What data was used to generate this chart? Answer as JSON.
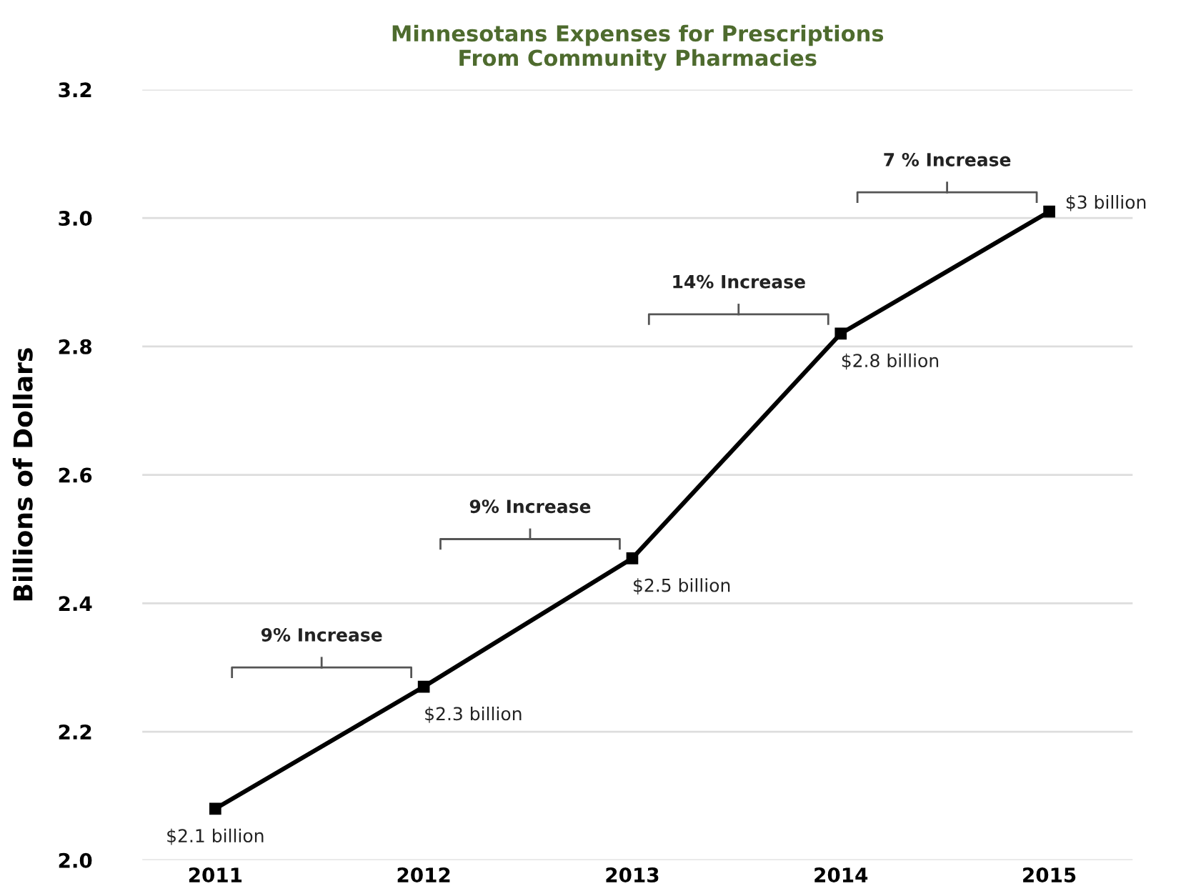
{
  "chart_data": {
    "type": "line",
    "title": "Minnesotans Expenses for Prescriptions\nFrom Community Pharmacies",
    "ylabel": "Billions of Dollars",
    "categories": [
      "2011",
      "2012",
      "2013",
      "2014",
      "2015"
    ],
    "series": [
      {
        "color": "#000000",
        "values": [
          2.08,
          2.27,
          2.47,
          2.82,
          3.01
        ],
        "value_labels": [
          "$2.1 billion",
          "$2.3 billion",
          "$2.5 billion",
          "$2.8 billion",
          "$3 billion"
        ]
      }
    ],
    "ylim": [
      2.0,
      3.2
    ],
    "yticks": [
      "2.0",
      "2.2",
      "2.4",
      "2.6",
      "2.8",
      "3.0",
      "3.2"
    ],
    "annotations": [
      "9% Increase",
      "9% Increase",
      "14% Increase",
      "7 % Increase"
    ],
    "grid": "y",
    "legend": false,
    "marker": "square",
    "line_style": "solid"
  }
}
